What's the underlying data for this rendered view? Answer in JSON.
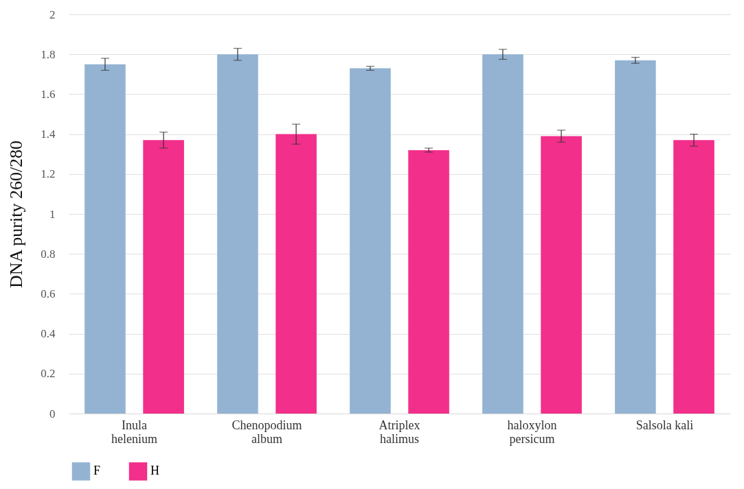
{
  "chart_data": {
    "type": "bar",
    "ylabel": "DNA purity 260/280",
    "categories": [
      "Inula\nhelenium",
      "Chenopodium\nalbum",
      "Atriplex\nhalimus",
      "haloxylon\npersicum",
      "Salsola kali"
    ],
    "series": [
      {
        "name": "F",
        "color": "#94b3d3",
        "values": [
          1.75,
          1.8,
          1.73,
          1.8,
          1.77
        ],
        "errors": [
          0.03,
          0.03,
          0.01,
          0.025,
          0.015
        ]
      },
      {
        "name": "H",
        "color": "#f22f8a",
        "values": [
          1.37,
          1.4,
          1.32,
          1.39,
          1.37
        ],
        "errors": [
          0.04,
          0.05,
          0.01,
          0.03,
          0.03
        ]
      }
    ],
    "ylim": [
      0,
      2
    ],
    "yticks": [
      0,
      0.2,
      0.4,
      0.6,
      0.8,
      1,
      1.2,
      1.4,
      1.6,
      1.8,
      2
    ],
    "grid": "y",
    "legend": "bottom"
  }
}
